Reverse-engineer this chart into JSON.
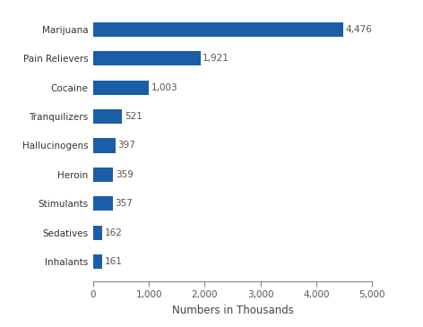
{
  "categories": [
    "Inhalants",
    "Sedatives",
    "Stimulants",
    "Heroin",
    "Hallucinogens",
    "Tranquilizers",
    "Cocaine",
    "Pain Relievers",
    "Marijuana"
  ],
  "values": [
    161,
    162,
    357,
    359,
    397,
    521,
    1003,
    1921,
    4476
  ],
  "labels": [
    "161",
    "162",
    "357",
    "359",
    "397",
    "521",
    "1,003",
    "1,921",
    "4,476"
  ],
  "bar_color": "#1A5EA8",
  "xlabel": "Numbers in Thousands",
  "xlim": [
    0,
    5000
  ],
  "xticks": [
    0,
    1000,
    2000,
    3000,
    4000,
    5000
  ],
  "xtick_labels": [
    "0",
    "1,000",
    "2,000",
    "3,000",
    "4,000",
    "5,000"
  ],
  "background_color": "#ffffff",
  "label_fontsize": 7.5,
  "tick_fontsize": 7.5,
  "xlabel_fontsize": 8.5,
  "bar_height": 0.5
}
